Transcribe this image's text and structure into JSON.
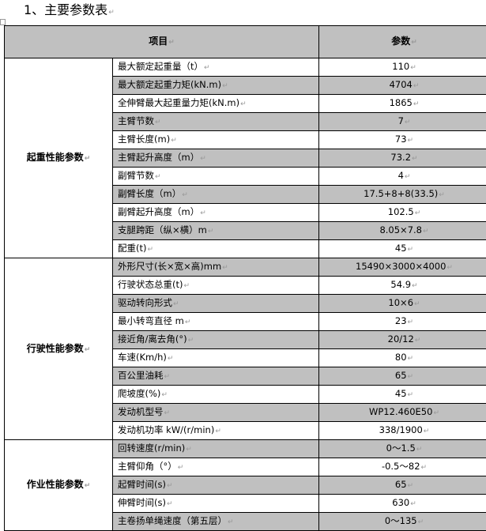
{
  "title": "1、主要参数表",
  "table": {
    "headers": {
      "item": "项目",
      "value": "参数"
    },
    "groups": [
      {
        "name": "起重性能参数",
        "rows": [
          {
            "item": "最大额定起重量（t）",
            "value": "110",
            "shaded": false
          },
          {
            "item": "最大额定起重力矩(kN.m)",
            "value": "4704",
            "shaded": true
          },
          {
            "item": "全伸臂最大起重量力矩(kN.m)",
            "value": "1865",
            "shaded": false
          },
          {
            "item": "主臂节数",
            "value": "7",
            "shaded": true
          },
          {
            "item": "主臂长度(m)",
            "value": "73",
            "shaded": false
          },
          {
            "item": "主臂起升高度（m）",
            "value": "73.2",
            "shaded": true
          },
          {
            "item": "副臂节数",
            "value": "4",
            "shaded": false
          },
          {
            "item": "副臂长度（m）",
            "value": "17.5+8+8(33.5)",
            "shaded": true
          },
          {
            "item": "副臂起升高度（m）",
            "value": "102.5",
            "shaded": false
          },
          {
            "item": "支腿跨距（纵×横）m",
            "value": "8.05×7.8",
            "shaded": true
          },
          {
            "item": "配重(t)",
            "value": "45",
            "shaded": false
          }
        ]
      },
      {
        "name": "行驶性能参数",
        "rows": [
          {
            "item": "外形尺寸(长×宽×高)mm",
            "value": "15490×3000×4000",
            "shaded": true
          },
          {
            "item": "行驶状态总重(t)",
            "value": "54.9",
            "shaded": false
          },
          {
            "item": "驱动转向形式",
            "value": "10×6",
            "shaded": true
          },
          {
            "item": "最小转弯直径 m",
            "value": "23",
            "shaded": false
          },
          {
            "item": "接近角/离去角(°)",
            "value": "20/12",
            "shaded": true
          },
          {
            "item": "车速(Km/h)",
            "value": "80",
            "shaded": false
          },
          {
            "item": "百公里油耗",
            "value": "65",
            "shaded": true
          },
          {
            "item": "爬坡度(%)",
            "value": "45",
            "shaded": false
          },
          {
            "item": "发动机型号",
            "value": "WP12.460E50",
            "shaded": true
          },
          {
            "item": "发动机功率 kW/(r/min)",
            "value": "338/1900",
            "shaded": false
          }
        ]
      },
      {
        "name": "作业性能参数",
        "rows": [
          {
            "item": "回转速度(r/min)",
            "value": "0～1.5",
            "shaded": true
          },
          {
            "item": "主臂仰角（°）",
            "value": "-0.5～82",
            "shaded": false
          },
          {
            "item": "起臂时间(s)",
            "value": "65",
            "shaded": true
          },
          {
            "item": "伸臂时间(s)",
            "value": "630",
            "shaded": false
          },
          {
            "item": "主卷扬单绳速度（第五层）",
            "value": "0～135",
            "shaded": true
          }
        ]
      }
    ]
  },
  "colors": {
    "shade": "#c0c0c0",
    "border": "#000000"
  }
}
